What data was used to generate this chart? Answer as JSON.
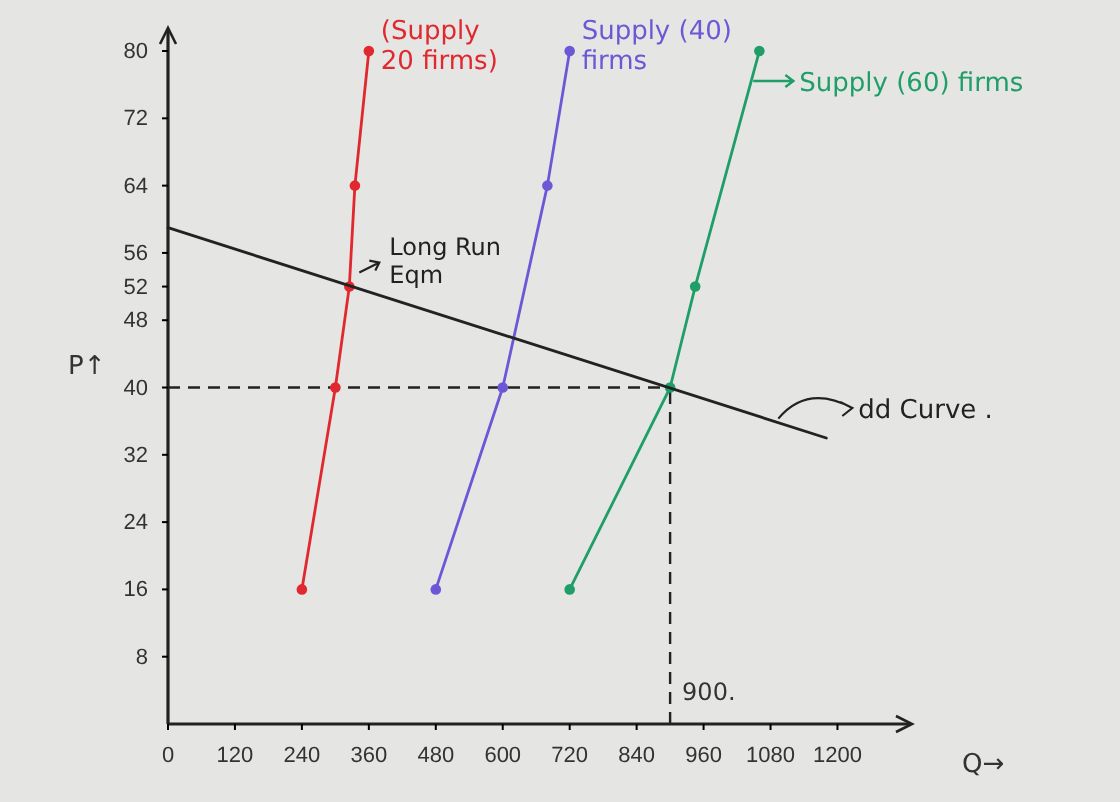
{
  "chart_data": {
    "type": "line",
    "xlabel": "Q→",
    "ylabel": "P↑",
    "xlim": [
      0,
      1330
    ],
    "ylim": [
      0,
      82.5
    ],
    "xticks": [
      0,
      120,
      240,
      360,
      480,
      600,
      720,
      840,
      960,
      1080,
      1200
    ],
    "yticks": [
      8,
      16,
      24,
      32,
      40,
      48,
      52,
      56,
      64,
      72,
      80
    ],
    "marker": "circle",
    "legend": "right",
    "series": [
      {
        "name": "(Supply 20 firms)",
        "color": "#e0282e",
        "x": [
          240,
          300,
          325,
          335,
          360
        ],
        "values": [
          16,
          40,
          52,
          64,
          80
        ]
      },
      {
        "name": "Supply (40) firms",
        "color": "#6a58d6",
        "x": [
          480,
          600,
          680,
          720
        ],
        "values": [
          16,
          40,
          64,
          80
        ]
      },
      {
        "name": "Supply (60) firms",
        "color": "#1f9e68",
        "x": [
          720,
          900,
          945,
          1060
        ],
        "values": [
          16,
          40,
          52,
          80
        ]
      },
      {
        "name": "dd Curve .",
        "color": "#222222",
        "x": [
          0,
          1180
        ],
        "values": [
          59,
          34
        ],
        "marker": "none"
      }
    ],
    "ref_lines": [
      {
        "axis": "y",
        "value": 40,
        "color": "#222222",
        "line_style": "dashed"
      },
      {
        "axis": "x",
        "value": 900,
        "label": "900.",
        "color": "#222222",
        "line_style": "dashed"
      }
    ],
    "annotations": [
      {
        "text": "Long Run Eqm",
        "x": 325,
        "y": 52
      }
    ]
  }
}
